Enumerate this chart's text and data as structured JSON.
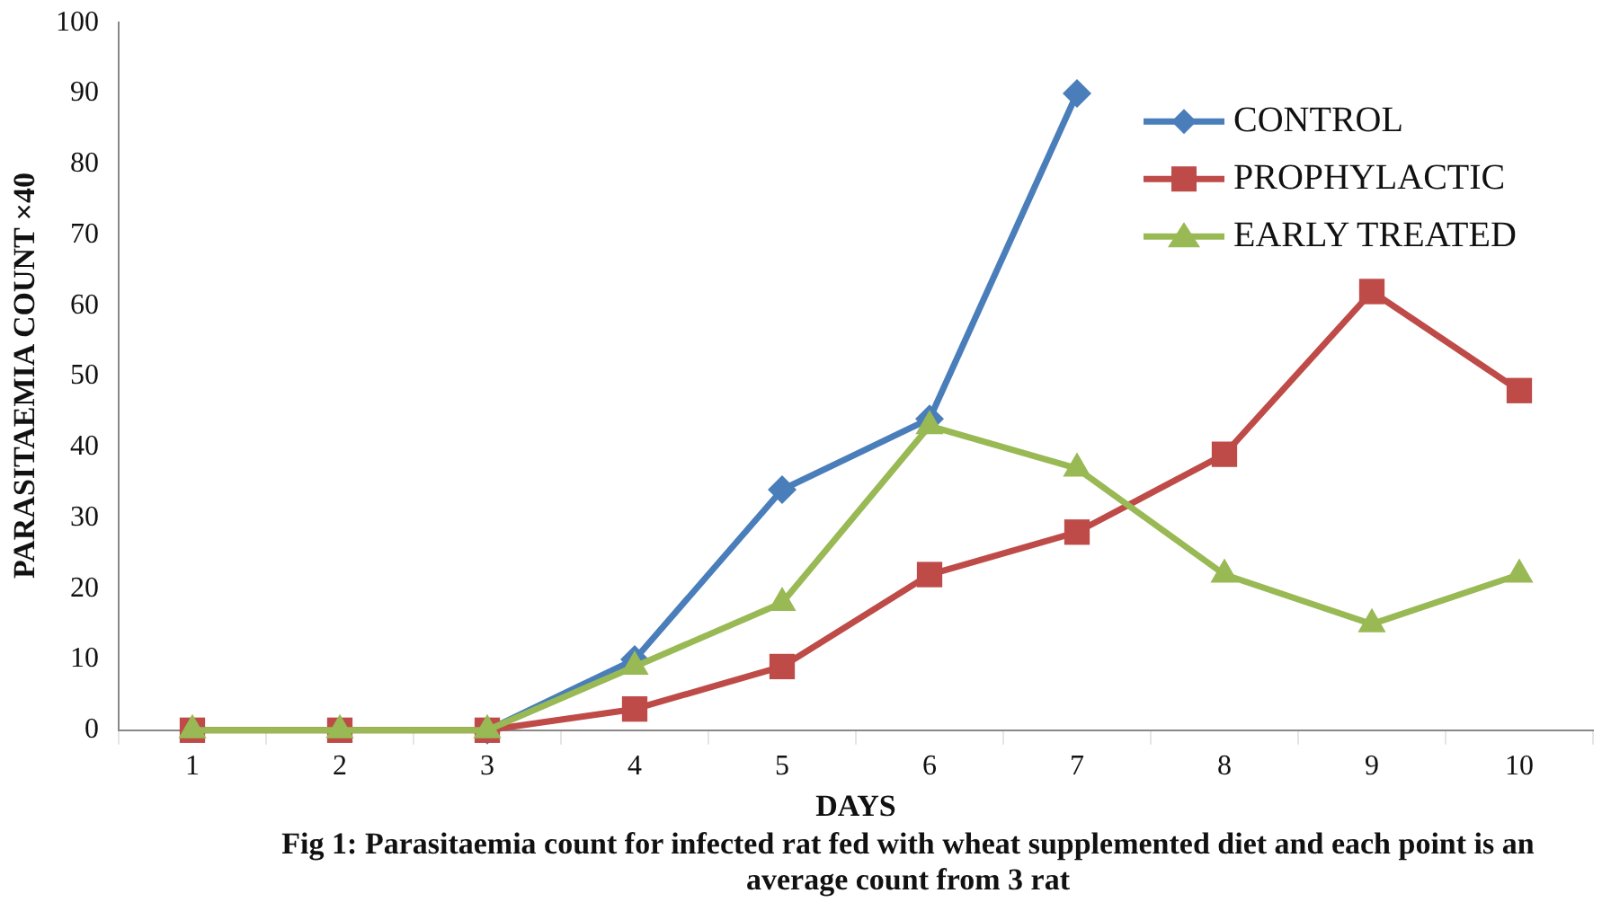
{
  "chart_data": {
    "type": "line",
    "xlabel": "DAYS",
    "ylabel": "PARASITAEMIA COUNT ×40",
    "categories": [
      "1",
      "2",
      "3",
      "4",
      "5",
      "6",
      "7",
      "8",
      "9",
      "10"
    ],
    "series": [
      {
        "name": "CONTROL",
        "color": "#4a7ebb",
        "marker": "diamond",
        "values": [
          null,
          null,
          0,
          10,
          34,
          44,
          90,
          null,
          null,
          null
        ]
      },
      {
        "name": "PROPHYLACTIC",
        "color": "#be4b48",
        "marker": "square",
        "values": [
          0,
          0,
          0,
          3,
          9,
          22,
          28,
          39,
          62,
          48
        ]
      },
      {
        "name": "EARLY TREATED",
        "color": "#98b954",
        "marker": "triangle",
        "values": [
          0,
          0,
          0,
          9,
          18,
          43,
          37,
          22,
          15,
          22
        ]
      }
    ],
    "ylim": [
      0,
      100
    ],
    "yticks": [
      0,
      10,
      20,
      30,
      40,
      50,
      60,
      70,
      80,
      90,
      100
    ],
    "grid": false,
    "legend": "top right",
    "annotations": [
      "Fig 1: Parasitaemia count for infected rat fed with wheat supplemented diet and  each point is an average count from 3 rat"
    ]
  }
}
